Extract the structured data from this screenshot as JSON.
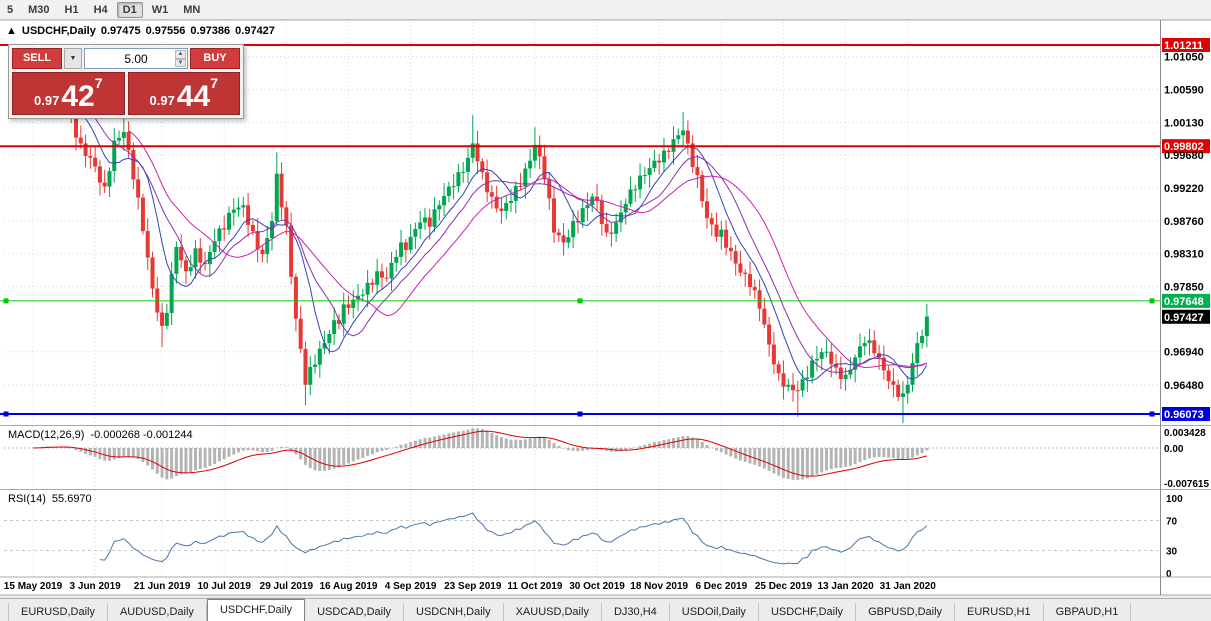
{
  "toolbar": {
    "timeframes": [
      {
        "label": "5",
        "active": false
      },
      {
        "label": "M30",
        "active": false
      },
      {
        "label": "H1",
        "active": false
      },
      {
        "label": "H4",
        "active": false
      },
      {
        "label": "D1",
        "active": true
      },
      {
        "label": "W1",
        "active": false
      },
      {
        "label": "MN",
        "active": false
      }
    ]
  },
  "chart_header": {
    "marker": "▲",
    "symbol": "USDCHF,Daily",
    "open": "0.97475",
    "high": "0.97556",
    "low": "0.97386",
    "close": "0.97427"
  },
  "trade_panel": {
    "sell_label": "SELL",
    "buy_label": "BUY",
    "volume": "5.00",
    "sell_price": {
      "prefix": "0.97",
      "big": "42",
      "sup": "7"
    },
    "buy_price": {
      "prefix": "0.97",
      "big": "44",
      "sup": "7"
    }
  },
  "indicators": {
    "macd": {
      "name": "MACD(12,26,9)",
      "values": "-0.000268 -0.001244"
    },
    "rsi": {
      "name": "RSI(14)",
      "value": "55.6970"
    }
  },
  "chart_data": {
    "type": "candlestick",
    "symbol": "USDCHF",
    "timeframe": "Daily",
    "ohlc_display": {
      "open": 0.97475,
      "high": 0.97556,
      "low": 0.97386,
      "close": 0.97427
    },
    "current_price": 0.97427,
    "x_ticks": [
      "15 May 2019",
      "3 Jun 2019",
      "21 Jun 2019",
      "10 Jul 2019",
      "29 Jul 2019",
      "16 Aug 2019",
      "4 Sep 2019",
      "23 Sep 2019",
      "11 Oct 2019",
      "30 Oct 2019",
      "18 Nov 2019",
      "6 Dec 2019",
      "25 Dec 2019",
      "13 Jan 2020",
      "31 Jan 2020"
    ],
    "x_tick_indices": [
      0,
      13,
      27,
      40,
      53,
      66,
      79,
      92,
      105,
      118,
      131,
      144,
      157,
      170,
      183
    ],
    "candle_count": 188,
    "price_path_anchors": [
      [
        0,
        1.0042
      ],
      [
        2,
        1.006
      ],
      [
        4,
        1.0046
      ],
      [
        6,
        1.0052
      ],
      [
        8,
        1.0022
      ],
      [
        10,
        0.9984
      ],
      [
        13,
        0.9952
      ],
      [
        15,
        0.9924
      ],
      [
        17,
        0.9988
      ],
      [
        19,
        1.0
      ],
      [
        21,
        0.9934
      ],
      [
        23,
        0.9862
      ],
      [
        25,
        0.9782
      ],
      [
        27,
        0.973
      ],
      [
        28,
        0.9748
      ],
      [
        30,
        0.984
      ],
      [
        32,
        0.9806
      ],
      [
        34,
        0.9838
      ],
      [
        36,
        0.9816
      ],
      [
        38,
        0.9848
      ],
      [
        40,
        0.9864
      ],
      [
        42,
        0.9892
      ],
      [
        44,
        0.9898
      ],
      [
        46,
        0.9862
      ],
      [
        48,
        0.983
      ],
      [
        50,
        0.9876
      ],
      [
        51,
        0.9942
      ],
      [
        53,
        0.987
      ],
      [
        55,
        0.974
      ],
      [
        57,
        0.9648
      ],
      [
        59,
        0.9676
      ],
      [
        61,
        0.9706
      ],
      [
        63,
        0.9738
      ],
      [
        66,
        0.9755
      ],
      [
        68,
        0.9772
      ],
      [
        70,
        0.979
      ],
      [
        72,
        0.9806
      ],
      [
        74,
        0.9796
      ],
      [
        76,
        0.9826
      ],
      [
        79,
        0.9854
      ],
      [
        81,
        0.9874
      ],
      [
        83,
        0.9868
      ],
      [
        85,
        0.9898
      ],
      [
        87,
        0.9924
      ],
      [
        89,
        0.9944
      ],
      [
        91,
        0.9964
      ],
      [
        92,
        0.9984
      ],
      [
        94,
        0.9944
      ],
      [
        96,
        0.991
      ],
      [
        98,
        0.989
      ],
      [
        100,
        0.9904
      ],
      [
        102,
        0.9924
      ],
      [
        104,
        0.996
      ],
      [
        105,
        0.9982
      ],
      [
        107,
        0.9934
      ],
      [
        109,
        0.986
      ],
      [
        111,
        0.9846
      ],
      [
        113,
        0.9876
      ],
      [
        115,
        0.9894
      ],
      [
        117,
        0.991
      ],
      [
        118,
        0.9904
      ],
      [
        120,
        0.986
      ],
      [
        122,
        0.9874
      ],
      [
        124,
        0.99
      ],
      [
        126,
        0.992
      ],
      [
        128,
        0.994
      ],
      [
        130,
        0.996
      ],
      [
        132,
        0.9974
      ],
      [
        134,
        0.999
      ],
      [
        136,
        1.0002
      ],
      [
        137,
        0.9984
      ],
      [
        139,
        0.994
      ],
      [
        141,
        0.988
      ],
      [
        143,
        0.9854
      ],
      [
        144,
        0.9864
      ],
      [
        146,
        0.9834
      ],
      [
        148,
        0.9804
      ],
      [
        150,
        0.9784
      ],
      [
        152,
        0.9754
      ],
      [
        154,
        0.9704
      ],
      [
        156,
        0.9664
      ],
      [
        158,
        0.9648
      ],
      [
        160,
        0.964
      ],
      [
        162,
        0.9658
      ],
      [
        164,
        0.9684
      ],
      [
        166,
        0.9694
      ],
      [
        168,
        0.9672
      ],
      [
        170,
        0.9662
      ],
      [
        172,
        0.9686
      ],
      [
        174,
        0.9706
      ],
      [
        176,
        0.9692
      ],
      [
        178,
        0.9668
      ],
      [
        180,
        0.9648
      ],
      [
        182,
        0.9636
      ],
      [
        183,
        0.9648
      ],
      [
        185,
        0.9706
      ],
      [
        187,
        0.9743
      ]
    ],
    "extra_wicks_high": [
      [
        19,
        0.0012
      ],
      [
        51,
        0.0016
      ],
      [
        92,
        0.003
      ],
      [
        105,
        0.0012
      ],
      [
        136,
        0.001
      ]
    ],
    "extra_wicks_low": [
      [
        27,
        0.0012
      ],
      [
        57,
        0.0012
      ],
      [
        160,
        0.0022
      ],
      [
        182,
        0.002
      ]
    ],
    "y_axis": [
      {
        "text": "1.01211",
        "badge": "#e00000"
      },
      {
        "text": "1.01050"
      },
      {
        "text": "1.00590"
      },
      {
        "text": "1.00130"
      },
      {
        "text": "0.99802",
        "badge": "#e00000"
      },
      {
        "text": "0.99680"
      },
      {
        "text": "0.99220"
      },
      {
        "text": "0.98760"
      },
      {
        "text": "0.98310"
      },
      {
        "text": "0.97850"
      },
      {
        "text": "0.97648",
        "badge": "#00b050"
      },
      {
        "text": "0.97427",
        "badge": "#000000"
      },
      {
        "text": "0.96940"
      },
      {
        "text": "0.96480"
      },
      {
        "text": "0.96073",
        "badge": "#0000dd"
      }
    ],
    "hlines": [
      {
        "price": 1.01211,
        "color": "#e00000",
        "width": 2,
        "handles": false
      },
      {
        "price": 0.99802,
        "color": "#e00000",
        "width": 2,
        "handles": false
      },
      {
        "price": 0.97648,
        "color": "#00cc00",
        "width": 1,
        "handles": true
      },
      {
        "price": 0.96073,
        "color": "#0000dd",
        "width": 2,
        "handles": true
      }
    ],
    "moving_averages": [
      {
        "period": 8,
        "color": "#3344bb"
      },
      {
        "period": 13,
        "color": "#8833aa"
      },
      {
        "period": 21,
        "color": "#cc22aa"
      }
    ],
    "colors": {
      "up": "#00a651",
      "down": "#e53935",
      "grid": "#d8d8d8",
      "macd_hist": "#b4b4b4",
      "macd_signal": "#dd0000",
      "rsi_line": "#4a76a8"
    },
    "macd_axis": [
      0.003428,
      0,
      -0.007615
    ],
    "macd_axis_labels": [
      "0.003428",
      "0.00",
      "-0.007615"
    ],
    "rsi_axis_labels": [
      "100",
      "70",
      "30",
      "0"
    ],
    "rsi_levels": [
      70,
      30
    ]
  },
  "tabs": {
    "items": [
      "EURUSD,Daily",
      "AUDUSD,Daily",
      "USDCHF,Daily",
      "USDCAD,Daily",
      "USDCNH,Daily",
      "XAUUSD,Daily",
      "DJ30,H4",
      "USDOil,Daily",
      "USDCHF,Daily",
      "GBPUSD,Daily",
      "EURUSD,H1",
      "GBPAUD,H1"
    ],
    "active_index": 2
  }
}
